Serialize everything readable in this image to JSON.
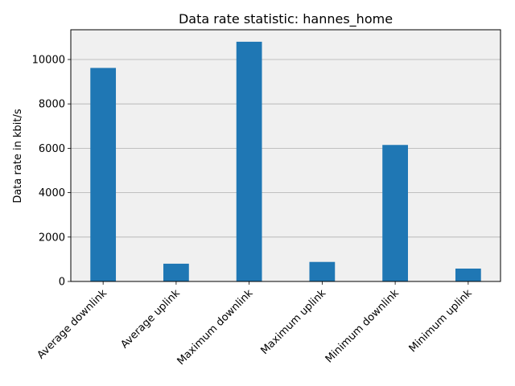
{
  "chart_data": {
    "type": "bar",
    "title": "Data rate statistic: hannes_home",
    "xlabel": "",
    "ylabel": "Data rate in kbit/s",
    "categories": [
      "Average downlink",
      "Average uplink",
      "Maximum downlink",
      "Maximum uplink",
      "Minimum downlink",
      "Minimum uplink"
    ],
    "values": [
      9620,
      800,
      10800,
      880,
      6150,
      580
    ],
    "ylim": [
      0,
      11340
    ],
    "yticks": [
      0,
      2000,
      4000,
      6000,
      8000,
      10000
    ],
    "grid": "y",
    "legend": "none",
    "colors": {
      "bar": "#1f77b4",
      "plot_background": "#f0f0f0",
      "grid": "#b0b0b0",
      "axis": "#000000"
    }
  }
}
